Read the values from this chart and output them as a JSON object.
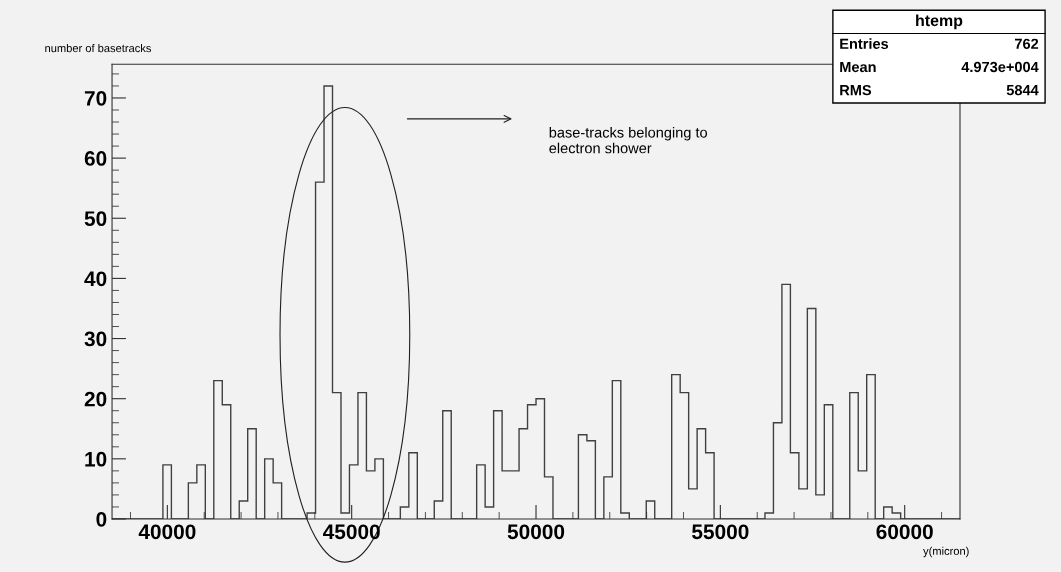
{
  "chart_data": {
    "type": "histogram",
    "ylabel": "number of basetracks",
    "xlabel": "y(micron)",
    "bins": [
      38500,
      38730,
      38960,
      39190,
      39420,
      39650,
      39880,
      40110,
      40340,
      40570,
      40800,
      41030,
      41260,
      41490,
      41720,
      41950,
      42180,
      42410,
      42640,
      42870,
      43100,
      43330,
      43560,
      43790,
      44020,
      44250,
      44480,
      44710,
      44940,
      45170,
      45400,
      45630,
      45860,
      46090,
      46320,
      46550,
      46780,
      47010,
      47240,
      47470,
      47700,
      47930,
      48160,
      48390,
      48620,
      48850,
      49080,
      49310,
      49540,
      49770,
      50000,
      50230,
      50460,
      50690,
      50920,
      51150,
      51380,
      51610,
      51840,
      52070,
      52300,
      52530,
      52760,
      52990,
      53220,
      53450,
      53680,
      53910,
      54140,
      54370,
      54600,
      54830,
      55060,
      55290,
      55520,
      55750,
      55980,
      56210,
      56440,
      56670,
      56900,
      57130,
      57360,
      57590,
      57820,
      58050,
      58280,
      58510,
      58740,
      58970,
      59200,
      59430,
      59660,
      59890,
      60120,
      60350,
      60580,
      60810,
      61040,
      61270,
      61500
    ],
    "values": [
      0,
      0,
      0,
      0,
      0,
      0,
      9,
      0,
      0,
      6,
      9,
      0,
      23,
      19,
      0,
      3,
      15,
      0,
      10,
      6,
      0,
      0,
      0,
      1,
      56,
      72,
      21,
      1,
      9,
      21,
      8,
      10,
      0,
      0,
      2,
      11,
      0,
      0,
      3,
      18,
      0,
      0,
      0,
      9,
      2,
      18,
      8,
      8,
      15,
      19,
      20,
      7,
      0,
      0,
      0,
      14,
      13,
      0,
      7,
      23,
      1,
      0,
      0,
      3,
      0,
      0,
      24,
      21,
      5,
      15,
      11,
      0,
      0,
      0,
      0,
      0,
      0,
      1,
      16,
      39,
      11,
      5,
      35,
      4,
      19,
      0,
      0,
      21,
      8,
      24,
      0,
      2,
      1,
      0,
      0,
      0,
      0,
      0,
      0,
      0
    ],
    "color": "#404040",
    "xlim": [
      38500,
      61500
    ],
    "ylim": [
      0,
      75.6
    ],
    "xticks": [
      40000,
      45000,
      50000,
      55000,
      60000
    ],
    "yticks": [
      0,
      10,
      20,
      30,
      40,
      50,
      60,
      70
    ],
    "grid": false,
    "annotations": [
      "base-tracks belonging to\nelectron shower",
      "htemp",
      "Entries",
      "762",
      "Mean",
      "4.973e+004",
      "RMS",
      "5844"
    ]
  }
}
